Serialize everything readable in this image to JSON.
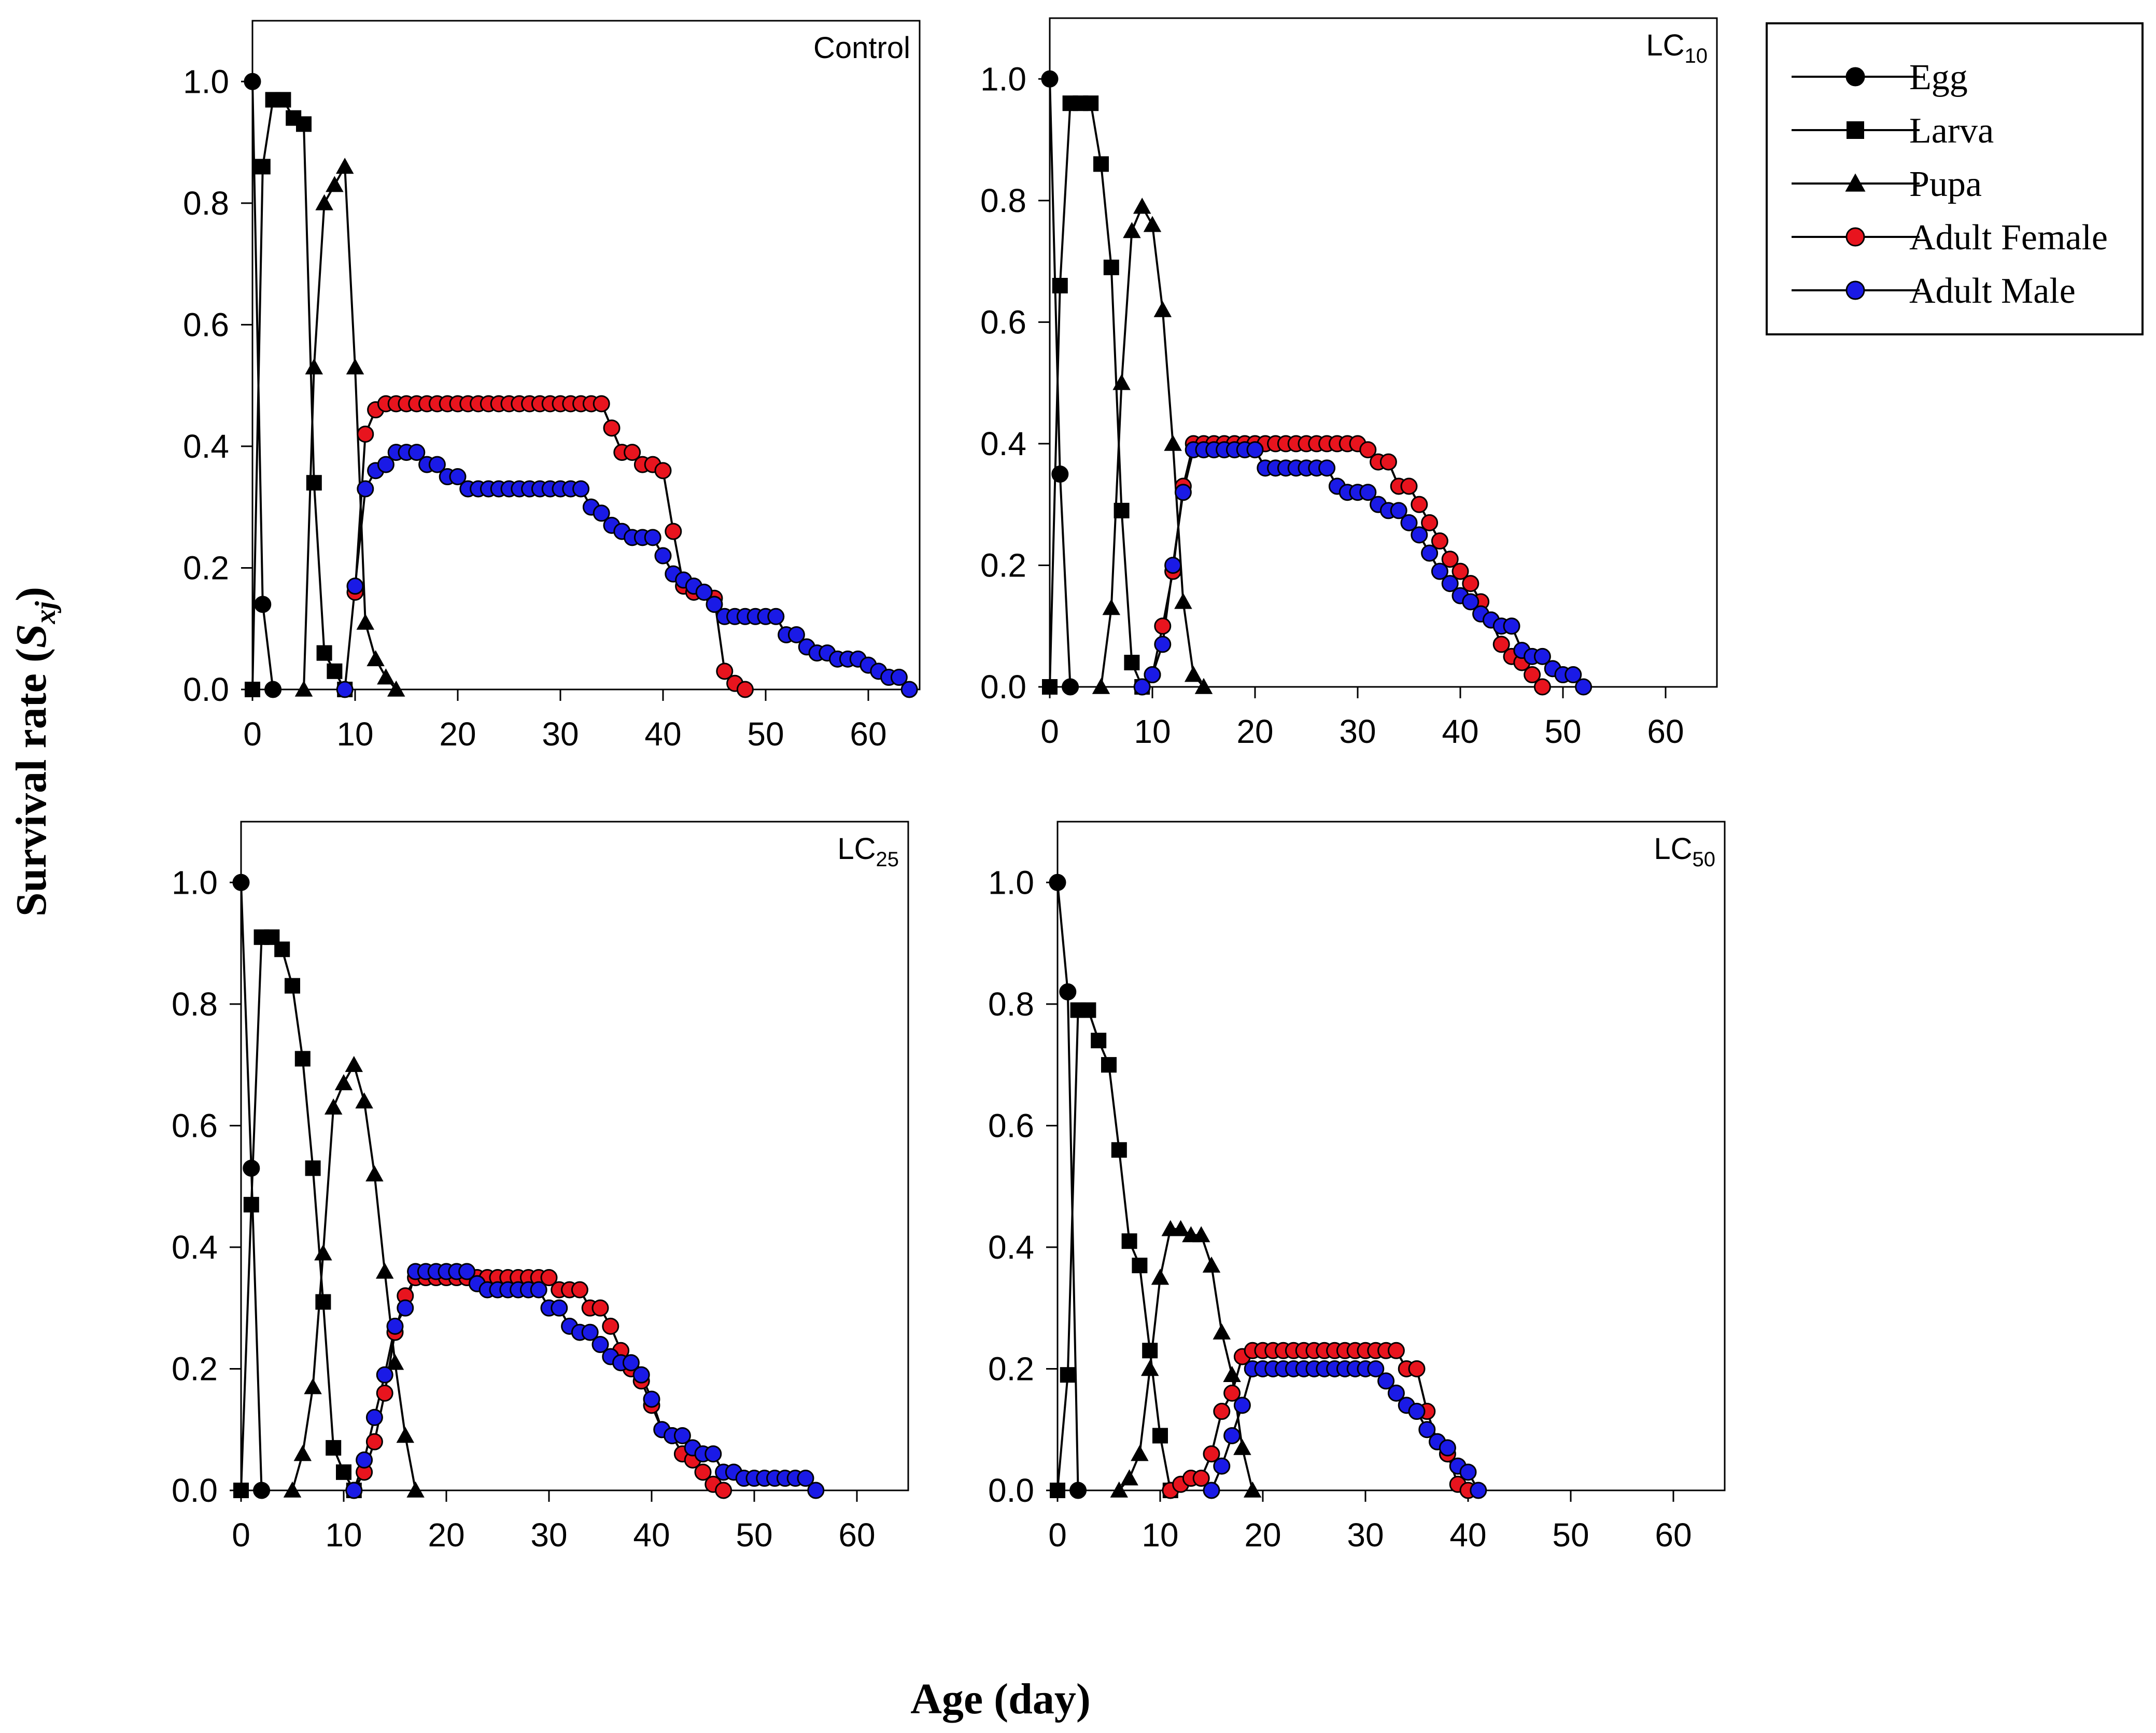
{
  "axis_titles": {
    "ylabel_main": "Survival rate (",
    "ylabel_symbol": "S",
    "ylabel_sub": "xj",
    "ylabel_close": ")",
    "xlabel": "Age (day)"
  },
  "legend": [
    {
      "name": "Egg",
      "marker": "circle",
      "color": "#000000"
    },
    {
      "name": "Larva",
      "marker": "square",
      "color": "#000000"
    },
    {
      "name": "Pupa",
      "marker": "triangle",
      "color": "#000000"
    },
    {
      "name": "Adult Female",
      "marker": "circle",
      "color": "#e8141e"
    },
    {
      "name": "Adult Male",
      "marker": "circle",
      "color": "#1a1ae6"
    }
  ],
  "chart_data": [
    {
      "type": "line",
      "title": "Control",
      "title_sub": "",
      "xlabel": "Age (day)",
      "ylabel": "Survival rate (Sxj)",
      "xlim": [
        0,
        65
      ],
      "ylim": [
        0,
        1.1
      ],
      "xticks": [
        "0",
        "10",
        "20",
        "30",
        "40",
        "50",
        "60"
      ],
      "yticks": [
        "0.0",
        "0.2",
        "0.4",
        "0.6",
        "0.8",
        "1.0"
      ],
      "series": [
        {
          "name": "Egg",
          "x": [
            0,
            1,
            2
          ],
          "y": [
            1.0,
            0.14,
            0.0
          ]
        },
        {
          "name": "Larva",
          "x": [
            0,
            1,
            2,
            3,
            4,
            5,
            6,
            7,
            8,
            9
          ],
          "y": [
            0.0,
            0.86,
            0.97,
            0.97,
            0.94,
            0.93,
            0.34,
            0.06,
            0.03,
            0.0
          ]
        },
        {
          "name": "Pupa",
          "x": [
            5,
            6,
            7,
            8,
            9,
            10,
            11,
            12,
            13,
            14
          ],
          "y": [
            0.0,
            0.53,
            0.8,
            0.83,
            0.86,
            0.53,
            0.11,
            0.05,
            0.02,
            0.0
          ]
        },
        {
          "name": "Adult Female",
          "x": [
            10,
            11,
            12,
            13,
            14,
            15,
            16,
            17,
            18,
            19,
            20,
            21,
            22,
            23,
            24,
            25,
            26,
            27,
            28,
            29,
            30,
            31,
            32,
            33,
            34,
            35,
            36,
            37,
            38,
            39,
            40,
            41,
            42,
            43,
            44,
            45,
            46,
            47,
            48
          ],
          "y": [
            0.16,
            0.42,
            0.46,
            0.47,
            0.47,
            0.47,
            0.47,
            0.47,
            0.47,
            0.47,
            0.47,
            0.47,
            0.47,
            0.47,
            0.47,
            0.47,
            0.47,
            0.47,
            0.47,
            0.47,
            0.47,
            0.47,
            0.47,
            0.47,
            0.47,
            0.43,
            0.39,
            0.39,
            0.37,
            0.37,
            0.36,
            0.26,
            0.17,
            0.16,
            0.16,
            0.15,
            0.03,
            0.01,
            0.0
          ]
        },
        {
          "name": "Adult Male",
          "x": [
            9,
            10,
            11,
            12,
            13,
            14,
            15,
            16,
            17,
            18,
            19,
            20,
            21,
            22,
            23,
            24,
            25,
            26,
            27,
            28,
            29,
            30,
            31,
            32,
            33,
            34,
            35,
            36,
            37,
            38,
            39,
            40,
            41,
            42,
            43,
            44,
            45,
            46,
            47,
            48,
            49,
            50,
            51,
            52,
            53,
            54,
            55,
            56,
            57,
            58,
            59,
            60,
            61,
            62,
            63,
            64
          ],
          "y": [
            0.0,
            0.17,
            0.33,
            0.36,
            0.37,
            0.39,
            0.39,
            0.39,
            0.37,
            0.37,
            0.35,
            0.35,
            0.33,
            0.33,
            0.33,
            0.33,
            0.33,
            0.33,
            0.33,
            0.33,
            0.33,
            0.33,
            0.33,
            0.33,
            0.3,
            0.29,
            0.27,
            0.26,
            0.25,
            0.25,
            0.25,
            0.22,
            0.19,
            0.18,
            0.17,
            0.16,
            0.14,
            0.12,
            0.12,
            0.12,
            0.12,
            0.12,
            0.12,
            0.09,
            0.09,
            0.07,
            0.06,
            0.06,
            0.05,
            0.05,
            0.05,
            0.04,
            0.03,
            0.02,
            0.02,
            0.0
          ]
        }
      ]
    },
    {
      "type": "line",
      "title": "LC",
      "title_sub": "10",
      "xlabel": "Age (day)",
      "ylabel": "Survival rate (Sxj)",
      "xlim": [
        0,
        65
      ],
      "ylim": [
        0,
        1.1
      ],
      "xticks": [
        "0",
        "10",
        "20",
        "30",
        "40",
        "50",
        "60"
      ],
      "yticks": [
        "0.0",
        "0.2",
        "0.4",
        "0.6",
        "0.8",
        "1.0"
      ],
      "series": [
        {
          "name": "Egg",
          "x": [
            0,
            1,
            2
          ],
          "y": [
            1.0,
            0.35,
            0.0
          ]
        },
        {
          "name": "Larva",
          "x": [
            0,
            1,
            2,
            3,
            4,
            5,
            6,
            7,
            8,
            9
          ],
          "y": [
            0.0,
            0.66,
            0.96,
            0.96,
            0.96,
            0.86,
            0.69,
            0.29,
            0.04,
            0.0
          ]
        },
        {
          "name": "Pupa",
          "x": [
            5,
            6,
            7,
            8,
            9,
            10,
            11,
            12,
            13,
            14,
            15
          ],
          "y": [
            0.0,
            0.13,
            0.5,
            0.75,
            0.79,
            0.76,
            0.62,
            0.4,
            0.14,
            0.02,
            0.0
          ]
        },
        {
          "name": "Adult Female",
          "x": [
            9,
            10,
            11,
            12,
            13,
            14,
            15,
            16,
            17,
            18,
            19,
            20,
            21,
            22,
            23,
            24,
            25,
            26,
            27,
            28,
            29,
            30,
            31,
            32,
            33,
            34,
            35,
            36,
            37,
            38,
            39,
            40,
            41,
            42,
            43,
            44,
            45,
            46,
            47,
            48
          ],
          "y": [
            0.0,
            0.02,
            0.1,
            0.19,
            0.33,
            0.4,
            0.4,
            0.4,
            0.4,
            0.4,
            0.4,
            0.4,
            0.4,
            0.4,
            0.4,
            0.4,
            0.4,
            0.4,
            0.4,
            0.4,
            0.4,
            0.4,
            0.39,
            0.37,
            0.37,
            0.33,
            0.33,
            0.3,
            0.27,
            0.24,
            0.21,
            0.19,
            0.17,
            0.14,
            0.11,
            0.07,
            0.05,
            0.04,
            0.02,
            0.0
          ]
        },
        {
          "name": "Adult Male",
          "x": [
            9,
            10,
            11,
            12,
            13,
            14,
            15,
            16,
            17,
            18,
            19,
            20,
            21,
            22,
            23,
            24,
            25,
            26,
            27,
            28,
            29,
            30,
            31,
            32,
            33,
            34,
            35,
            36,
            37,
            38,
            39,
            40,
            41,
            42,
            43,
            44,
            45,
            46,
            47,
            48,
            49,
            50,
            51,
            52
          ],
          "y": [
            0.0,
            0.02,
            0.07,
            0.2,
            0.32,
            0.39,
            0.39,
            0.39,
            0.39,
            0.39,
            0.39,
            0.39,
            0.36,
            0.36,
            0.36,
            0.36,
            0.36,
            0.36,
            0.36,
            0.33,
            0.32,
            0.32,
            0.32,
            0.3,
            0.29,
            0.29,
            0.27,
            0.25,
            0.22,
            0.19,
            0.17,
            0.15,
            0.14,
            0.12,
            0.11,
            0.1,
            0.1,
            0.06,
            0.05,
            0.05,
            0.03,
            0.02,
            0.02,
            0.0
          ]
        }
      ]
    },
    {
      "type": "line",
      "title": "LC",
      "title_sub": "25",
      "xlabel": "Age (day)",
      "ylabel": "Survival rate (Sxj)",
      "xlim": [
        0,
        65
      ],
      "ylim": [
        0,
        1.1
      ],
      "xticks": [
        "0",
        "10",
        "20",
        "30",
        "40",
        "50",
        "60"
      ],
      "yticks": [
        "0.0",
        "0.2",
        "0.4",
        "0.6",
        "0.8",
        "1.0"
      ],
      "series": [
        {
          "name": "Egg",
          "x": [
            0,
            1,
            2
          ],
          "y": [
            1.0,
            0.53,
            0.0
          ]
        },
        {
          "name": "Larva",
          "x": [
            0,
            1,
            2,
            3,
            4,
            5,
            6,
            7,
            8,
            9,
            10,
            11
          ],
          "y": [
            0.0,
            0.47,
            0.91,
            0.91,
            0.89,
            0.83,
            0.71,
            0.53,
            0.31,
            0.07,
            0.03,
            0.0
          ]
        },
        {
          "name": "Pupa",
          "x": [
            5,
            6,
            7,
            8,
            9,
            10,
            11,
            12,
            13,
            14,
            15,
            16,
            17
          ],
          "y": [
            0.0,
            0.06,
            0.17,
            0.39,
            0.63,
            0.67,
            0.7,
            0.64,
            0.52,
            0.36,
            0.21,
            0.09,
            0.0
          ]
        },
        {
          "name": "Adult Female",
          "x": [
            11,
            12,
            13,
            14,
            15,
            16,
            17,
            18,
            19,
            20,
            21,
            22,
            23,
            24,
            25,
            26,
            27,
            28,
            29,
            30,
            31,
            32,
            33,
            34,
            35,
            36,
            37,
            38,
            39,
            40,
            41,
            42,
            43,
            44,
            45,
            46,
            47
          ],
          "y": [
            0.0,
            0.03,
            0.08,
            0.16,
            0.26,
            0.32,
            0.35,
            0.35,
            0.35,
            0.35,
            0.35,
            0.35,
            0.35,
            0.35,
            0.35,
            0.35,
            0.35,
            0.35,
            0.35,
            0.35,
            0.33,
            0.33,
            0.33,
            0.3,
            0.3,
            0.27,
            0.23,
            0.2,
            0.18,
            0.14,
            0.1,
            0.09,
            0.06,
            0.05,
            0.03,
            0.01,
            0.0
          ]
        },
        {
          "name": "Adult Male",
          "x": [
            11,
            12,
            13,
            14,
            15,
            16,
            17,
            18,
            19,
            20,
            21,
            22,
            23,
            24,
            25,
            26,
            27,
            28,
            29,
            30,
            31,
            32,
            33,
            34,
            35,
            36,
            37,
            38,
            39,
            40,
            41,
            42,
            43,
            44,
            45,
            46,
            47,
            48,
            49,
            50,
            51,
            52,
            53,
            54,
            55,
            56
          ],
          "y": [
            0.0,
            0.05,
            0.12,
            0.19,
            0.27,
            0.3,
            0.36,
            0.36,
            0.36,
            0.36,
            0.36,
            0.36,
            0.34,
            0.33,
            0.33,
            0.33,
            0.33,
            0.33,
            0.33,
            0.3,
            0.3,
            0.27,
            0.26,
            0.26,
            0.24,
            0.22,
            0.21,
            0.21,
            0.19,
            0.15,
            0.1,
            0.09,
            0.09,
            0.07,
            0.06,
            0.06,
            0.03,
            0.03,
            0.02,
            0.02,
            0.02,
            0.02,
            0.02,
            0.02,
            0.02,
            0.0
          ]
        }
      ]
    },
    {
      "type": "line",
      "title": "LC",
      "title_sub": "50",
      "xlabel": "Age (day)",
      "ylabel": "Survival rate (Sxj)",
      "xlim": [
        0,
        65
      ],
      "ylim": [
        0,
        1.1
      ],
      "xticks": [
        "0",
        "10",
        "20",
        "30",
        "40",
        "50",
        "60"
      ],
      "yticks": [
        "0.0",
        "0.2",
        "0.4",
        "0.6",
        "0.8",
        "1.0"
      ],
      "series": [
        {
          "name": "Egg",
          "x": [
            0,
            1,
            2
          ],
          "y": [
            1.0,
            0.82,
            0.0
          ]
        },
        {
          "name": "Larva",
          "x": [
            0,
            1,
            2,
            3,
            4,
            5,
            6,
            7,
            8,
            9,
            10,
            11
          ],
          "y": [
            0.0,
            0.19,
            0.79,
            0.79,
            0.74,
            0.7,
            0.56,
            0.41,
            0.37,
            0.23,
            0.09,
            0.0
          ]
        },
        {
          "name": "Pupa",
          "x": [
            6,
            7,
            8,
            9,
            10,
            11,
            12,
            13,
            14,
            15,
            16,
            17,
            18,
            19
          ],
          "y": [
            0.0,
            0.02,
            0.06,
            0.2,
            0.35,
            0.43,
            0.43,
            0.42,
            0.42,
            0.37,
            0.26,
            0.19,
            0.07,
            0.0
          ]
        },
        {
          "name": "Adult Female",
          "x": [
            11,
            12,
            13,
            14,
            15,
            16,
            17,
            18,
            19,
            20,
            21,
            22,
            23,
            24,
            25,
            26,
            27,
            28,
            29,
            30,
            31,
            32,
            33,
            34,
            35,
            36,
            37,
            38,
            39,
            40
          ],
          "y": [
            0.0,
            0.01,
            0.02,
            0.02,
            0.06,
            0.13,
            0.16,
            0.22,
            0.23,
            0.23,
            0.23,
            0.23,
            0.23,
            0.23,
            0.23,
            0.23,
            0.23,
            0.23,
            0.23,
            0.23,
            0.23,
            0.23,
            0.23,
            0.2,
            0.2,
            0.13,
            0.08,
            0.06,
            0.01,
            0.0
          ]
        },
        {
          "name": "Adult Male",
          "x": [
            15,
            16,
            17,
            18,
            19,
            20,
            21,
            22,
            23,
            24,
            25,
            26,
            27,
            28,
            29,
            30,
            31,
            32,
            33,
            34,
            35,
            36,
            37,
            38,
            39,
            40,
            41
          ],
          "y": [
            0.0,
            0.04,
            0.09,
            0.14,
            0.2,
            0.2,
            0.2,
            0.2,
            0.2,
            0.2,
            0.2,
            0.2,
            0.2,
            0.2,
            0.2,
            0.2,
            0.2,
            0.18,
            0.16,
            0.14,
            0.13,
            0.1,
            0.08,
            0.07,
            0.04,
            0.03,
            0.0
          ]
        }
      ]
    }
  ]
}
